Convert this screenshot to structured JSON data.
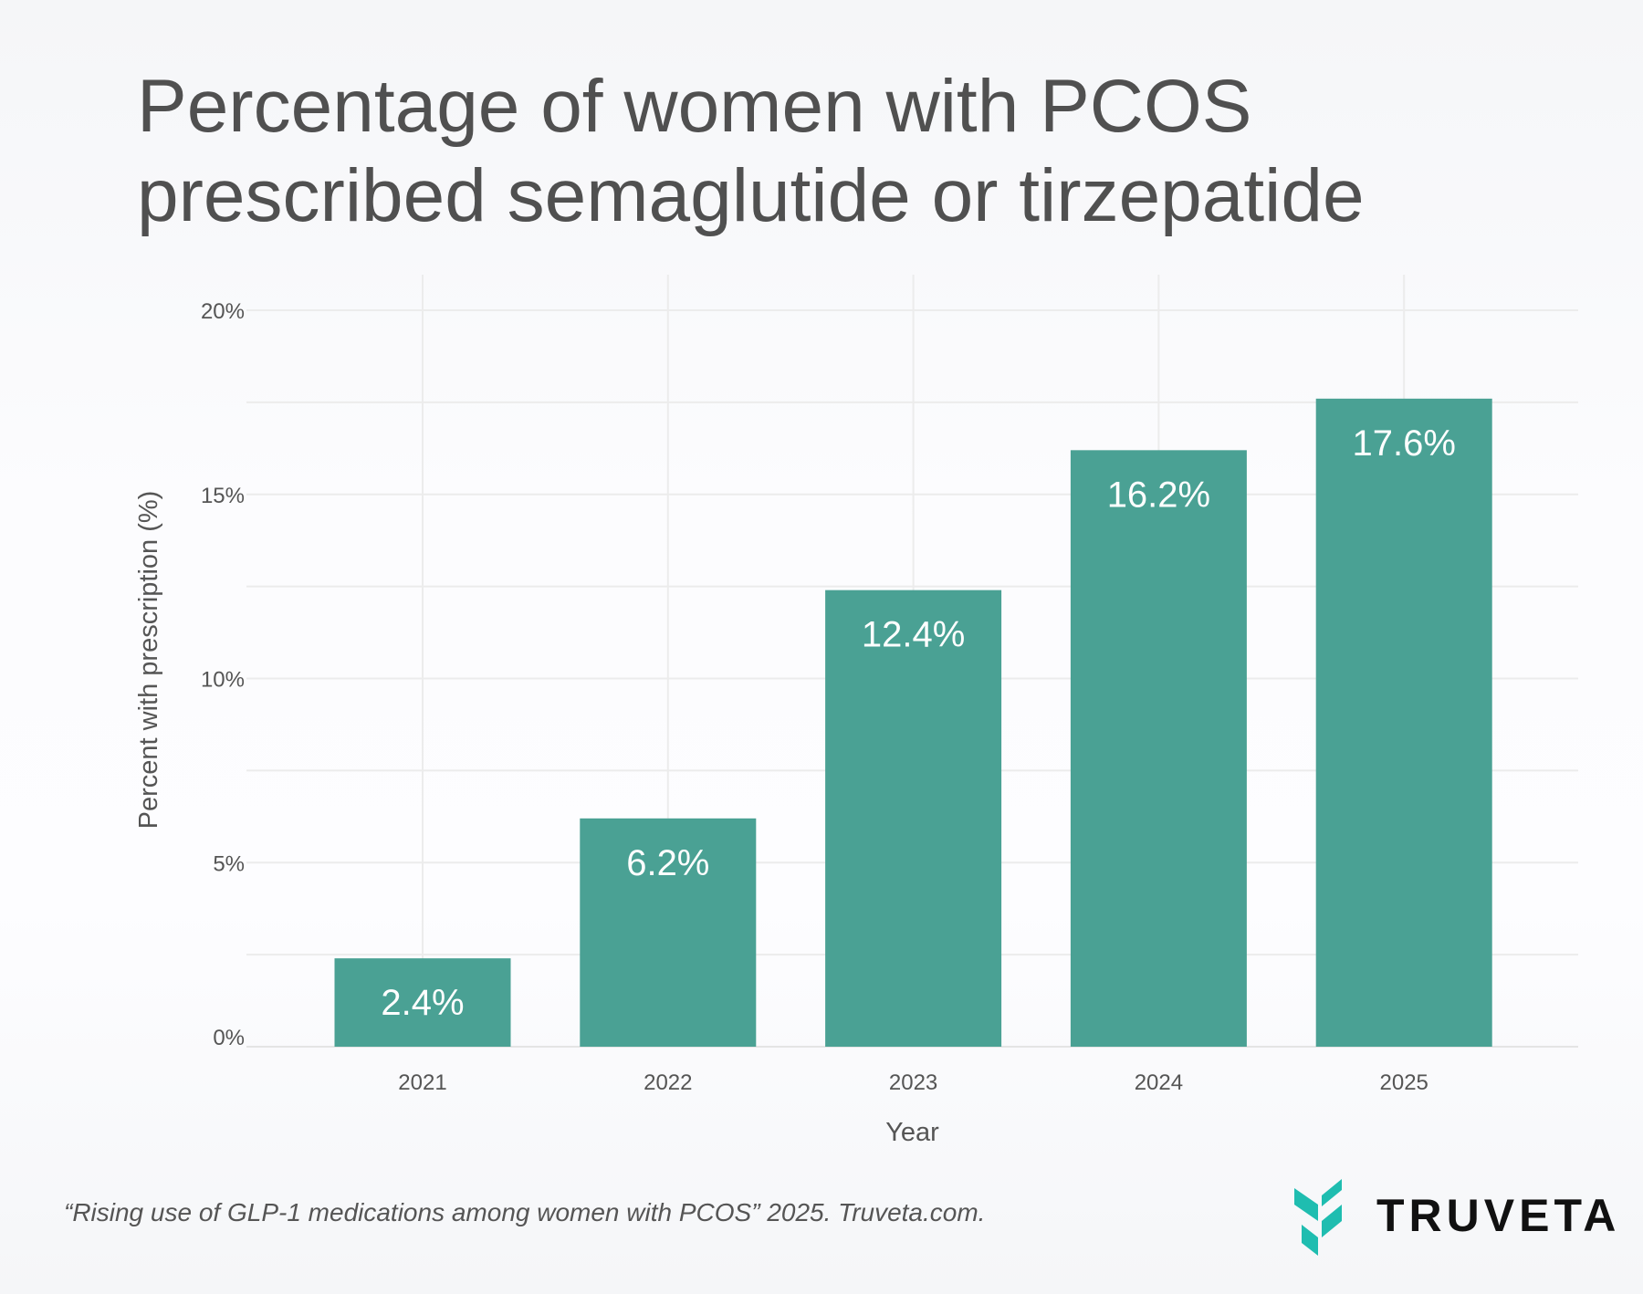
{
  "title_lines": [
    "Percentage of women with PCOS",
    "prescribed semaglutide or tirzepatide"
  ],
  "chart_data": {
    "type": "bar",
    "title": "Percentage of women with PCOS prescribed semaglutide or tirzepatide",
    "categories": [
      "2021",
      "2022",
      "2023",
      "2024",
      "2025"
    ],
    "values": [
      2.4,
      6.2,
      12.4,
      16.2,
      17.6
    ],
    "data_labels": [
      "2.4%",
      "6.2%",
      "12.4%",
      "16.2%",
      "17.6%"
    ],
    "xlabel": "Year",
    "ylabel": "Percent with prescription (%)",
    "ylim": [
      0,
      20
    ],
    "yticks": [
      0,
      5,
      10,
      15,
      20
    ],
    "ytick_labels": [
      "0%",
      "5%",
      "10%",
      "15%",
      "20%"
    ],
    "grid": true,
    "bar_color": "#4aa194"
  },
  "footer": {
    "citation": "“Rising use of GLP-1 medications among women with PCOS” 2025. Truveta.com."
  },
  "logo": {
    "text": "TRUVETA",
    "color": "#1fbdb0"
  }
}
